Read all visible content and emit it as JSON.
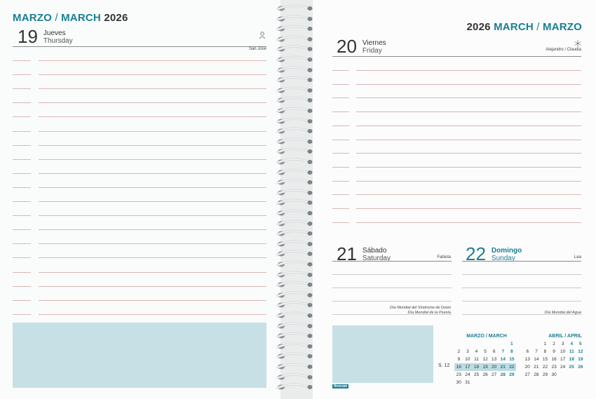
{
  "left": {
    "header_es": "MARZO",
    "header_sep": " / ",
    "header_en": "MARCH",
    "header_year": "2026",
    "day": {
      "num": "19",
      "es": "Jueves",
      "en": "Thursday",
      "saint": "San José",
      "icon": "person-icon"
    }
  },
  "right": {
    "header_year": "2026",
    "header_en": "MARCH",
    "header_sep": " / ",
    "header_es": "MARZO",
    "day20": {
      "num": "20",
      "es": "Viernes",
      "en": "Friday",
      "saint": "Alejandro / Claudia",
      "icon": "snowflake-icon"
    },
    "day21": {
      "num": "21",
      "es": "Sábado",
      "en": "Saturday",
      "saint": "Fabiola",
      "event1": "Día Mundial del Síndrome de Down",
      "event2": "Día Mundial de la Poesía"
    },
    "day22": {
      "num": "22",
      "es": "Domingo",
      "en": "Sunday",
      "saint": "Lea",
      "event1": "Día Mundial del Agua"
    },
    "calendar_march": {
      "title": "MARZO / MARCH",
      "rows": [
        [
          "",
          "",
          "",
          "",
          "",
          "",
          "1"
        ],
        [
          "2",
          "3",
          "4",
          "5",
          "6",
          "7",
          "8"
        ],
        [
          "9",
          "10",
          "11",
          "12",
          "13",
          "14",
          "15"
        ],
        [
          "16",
          "17",
          "18",
          "19",
          "20",
          "21",
          "22"
        ],
        [
          "23",
          "24",
          "25",
          "26",
          "27",
          "28",
          "29"
        ],
        [
          "30",
          "31",
          "",
          "",
          "",
          "",
          ""
        ]
      ],
      "week_label": "S. 12"
    },
    "calendar_april": {
      "title": "ABRIL / APRIL",
      "rows": [
        [
          "",
          "",
          "1",
          "2",
          "3",
          "4",
          "5"
        ],
        [
          "6",
          "7",
          "8",
          "9",
          "10",
          "11",
          "12"
        ],
        [
          "13",
          "14",
          "15",
          "16",
          "17",
          "18",
          "19"
        ],
        [
          "20",
          "21",
          "22",
          "23",
          "24",
          "25",
          "26"
        ],
        [
          "27",
          "28",
          "29",
          "30",
          "",
          "",
          ""
        ]
      ]
    },
    "brand": "finocam"
  }
}
